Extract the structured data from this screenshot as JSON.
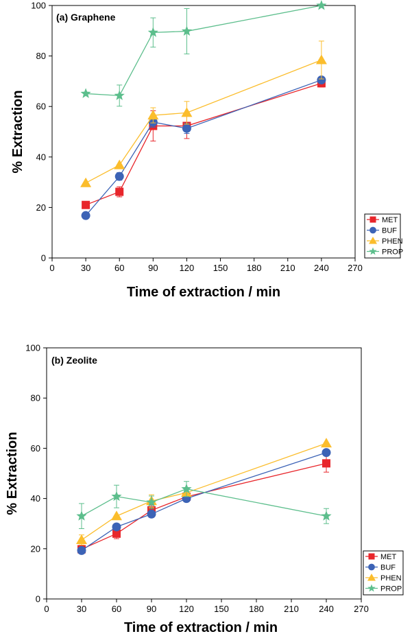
{
  "chart_data": [
    {
      "type": "line",
      "panel_label": "(a) Graphene",
      "xlabel": "Time of extraction / min",
      "ylabel": "% Extraction",
      "xlim": [
        0,
        270
      ],
      "ylim": [
        0,
        100
      ],
      "xticks": [
        0,
        30,
        60,
        90,
        120,
        150,
        180,
        210,
        240,
        270
      ],
      "yticks": [
        0,
        20,
        40,
        60,
        80,
        100
      ],
      "grid": false,
      "legend_position": "bottom-right",
      "x": [
        30,
        60,
        90,
        120,
        240
      ],
      "series": [
        {
          "name": "MET",
          "color": "#e8262b",
          "marker": "square",
          "values": [
            21,
            26.2,
            52.3,
            52.3,
            69.2
          ],
          "errors": [
            0,
            2,
            6,
            5,
            1.5
          ]
        },
        {
          "name": "BUF",
          "color": "#3c63b6",
          "marker": "circle",
          "values": [
            16.8,
            32.3,
            53.8,
            51.3,
            70.5
          ],
          "errors": [
            0,
            1.5,
            2,
            2,
            1
          ]
        },
        {
          "name": "PHEN",
          "color": "#fbbd2c",
          "marker": "triangle",
          "values": [
            29.7,
            36.8,
            56.5,
            57.5,
            78.4
          ],
          "errors": [
            0,
            0,
            3,
            4.5,
            7.5
          ]
        },
        {
          "name": "PROP",
          "color": "#5cbe8c",
          "marker": "star",
          "values": [
            65.1,
            64.3,
            89.3,
            89.8,
            100
          ],
          "errors": [
            0,
            4.2,
            5.8,
            9,
            0
          ]
        }
      ]
    },
    {
      "type": "line",
      "panel_label": "(b) Zeolite",
      "xlabel": "Time of extraction / min",
      "ylabel": "% Extraction",
      "xlim": [
        0,
        270
      ],
      "ylim": [
        0,
        100
      ],
      "xticks": [
        0,
        30,
        60,
        90,
        120,
        150,
        180,
        210,
        240,
        270
      ],
      "yticks": [
        0,
        20,
        40,
        60,
        80,
        100
      ],
      "grid": false,
      "legend_position": "bottom-right",
      "x": [
        30,
        60,
        90,
        120,
        240
      ],
      "series": [
        {
          "name": "MET",
          "color": "#e8262b",
          "marker": "square",
          "values": [
            19.8,
            26,
            35.3,
            40.7,
            54
          ],
          "errors": [
            1.5,
            2,
            2,
            2,
            3.5
          ]
        },
        {
          "name": "BUF",
          "color": "#3c63b6",
          "marker": "circle",
          "values": [
            19.3,
            28.7,
            33.8,
            40,
            58.3
          ],
          "errors": [
            0,
            0,
            0,
            0,
            0
          ]
        },
        {
          "name": "PHEN",
          "color": "#fbbd2c",
          "marker": "triangle",
          "values": [
            23.5,
            33,
            39,
            42.3,
            62
          ],
          "errors": [
            2,
            0,
            2.5,
            0,
            0
          ]
        },
        {
          "name": "PROP",
          "color": "#5cbe8c",
          "marker": "star",
          "values": [
            33,
            40.8,
            38.5,
            43.8,
            33
          ],
          "errors": [
            5,
            4.5,
            2.5,
            3,
            3
          ]
        }
      ]
    }
  ]
}
